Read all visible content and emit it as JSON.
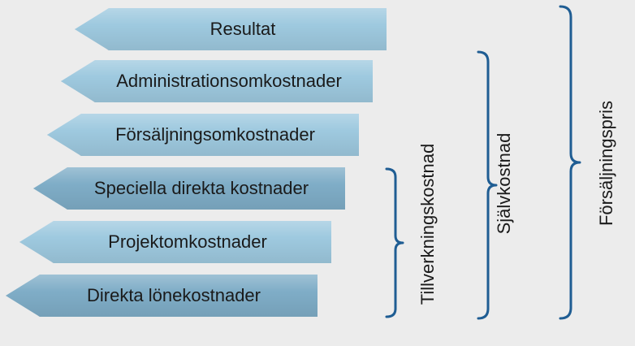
{
  "rows": [
    {
      "label": "Resultat"
    },
    {
      "label": "Administrationsomkostnader"
    },
    {
      "label": "Försäljningsomkostnader"
    },
    {
      "label": "Speciella direkta kostnader"
    },
    {
      "label": "Projektomkostnader"
    },
    {
      "label": "Direkta lönekostnader"
    }
  ],
  "groups": [
    {
      "label": "Tillverkningskostnad"
    },
    {
      "label": "Självkostnad"
    },
    {
      "label": "Försäljningspris"
    }
  ],
  "colors": {
    "arrow_light": "#9ec9df",
    "arrow_dark": "#7fadc7",
    "brace": "#1f5d93",
    "background": "#ececec"
  }
}
